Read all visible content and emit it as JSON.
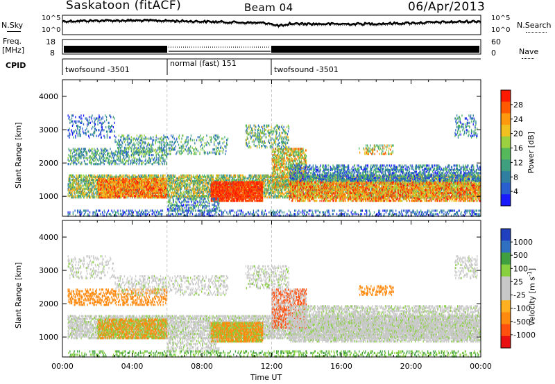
{
  "header": {
    "station": "Saskatoon (fitACF)",
    "beam": "Beam 04",
    "date": "06/Apr/2013"
  },
  "left_labels": {
    "nsky": "N.Sky",
    "freq": "Freq.",
    "freq_unit": "[MHz]",
    "cpid": "CPID"
  },
  "right_labels": {
    "nsearch": "N.Search",
    "nave": "Nave"
  },
  "cpid_segments": [
    {
      "label": "twofsound -3501",
      "start_h": 0,
      "end_h": 6
    },
    {
      "label": "normal (fast) 151",
      "start_h": 6,
      "end_h": 12
    },
    {
      "label": "twofsound -3501",
      "start_h": 12,
      "end_h": 24
    }
  ],
  "colors": {
    "power_scale": [
      "#1a1aff",
      "#2a5fd0",
      "#2f7fa0",
      "#3fa080",
      "#55b85a",
      "#9bd040",
      "#f0c020",
      "#ff9a10",
      "#ff5a00",
      "#ff1a00"
    ],
    "velocity_scale": [
      "#e81010",
      "#ff5010",
      "#ff8a10",
      "#ffb020",
      "#c8c8c8",
      "#c8c8c8",
      "#88d040",
      "#40a040",
      "#3070c0",
      "#2040c0"
    ]
  },
  "chart_data": [
    {
      "type": "line",
      "title": "N.Sky / N.Search",
      "left_ticks": [
        "10^5",
        "10^0"
      ],
      "right_ticks": [
        "10^5",
        "10^0"
      ],
      "xlim": [
        0,
        24
      ]
    },
    {
      "type": "line",
      "title": "Freq. / Nave",
      "left_ticks": [
        "18",
        "8"
      ],
      "right_ticks": [
        "60",
        "0"
      ],
      "xlim": [
        0,
        24
      ]
    },
    {
      "type": "heatmap",
      "ylabel": "Slant Range [km]",
      "yticks": [
        "1000",
        "2000",
        "3000",
        "4000"
      ],
      "ylim": [
        400,
        4500
      ],
      "colorbar_label": "Power [dB]",
      "colorbar_ticks": [
        "4",
        "8",
        "12",
        "16",
        "20",
        "24",
        "28"
      ]
    },
    {
      "type": "heatmap",
      "ylabel": "Slant Range [km]",
      "yticks": [
        "1000",
        "2000",
        "3000",
        "4000"
      ],
      "ylim": [
        400,
        4500
      ],
      "colorbar_label": "Velocity [m s^-1]",
      "colorbar_ticks": [
        "1000",
        "500",
        "100",
        "25",
        "-25",
        "-100",
        "-500",
        "-1000"
      ]
    }
  ],
  "x_axis": {
    "ticks": [
      "00:00",
      "04:00",
      "08:00",
      "12:00",
      "16:00",
      "20:00",
      "00:00"
    ],
    "label": "Time UT"
  }
}
